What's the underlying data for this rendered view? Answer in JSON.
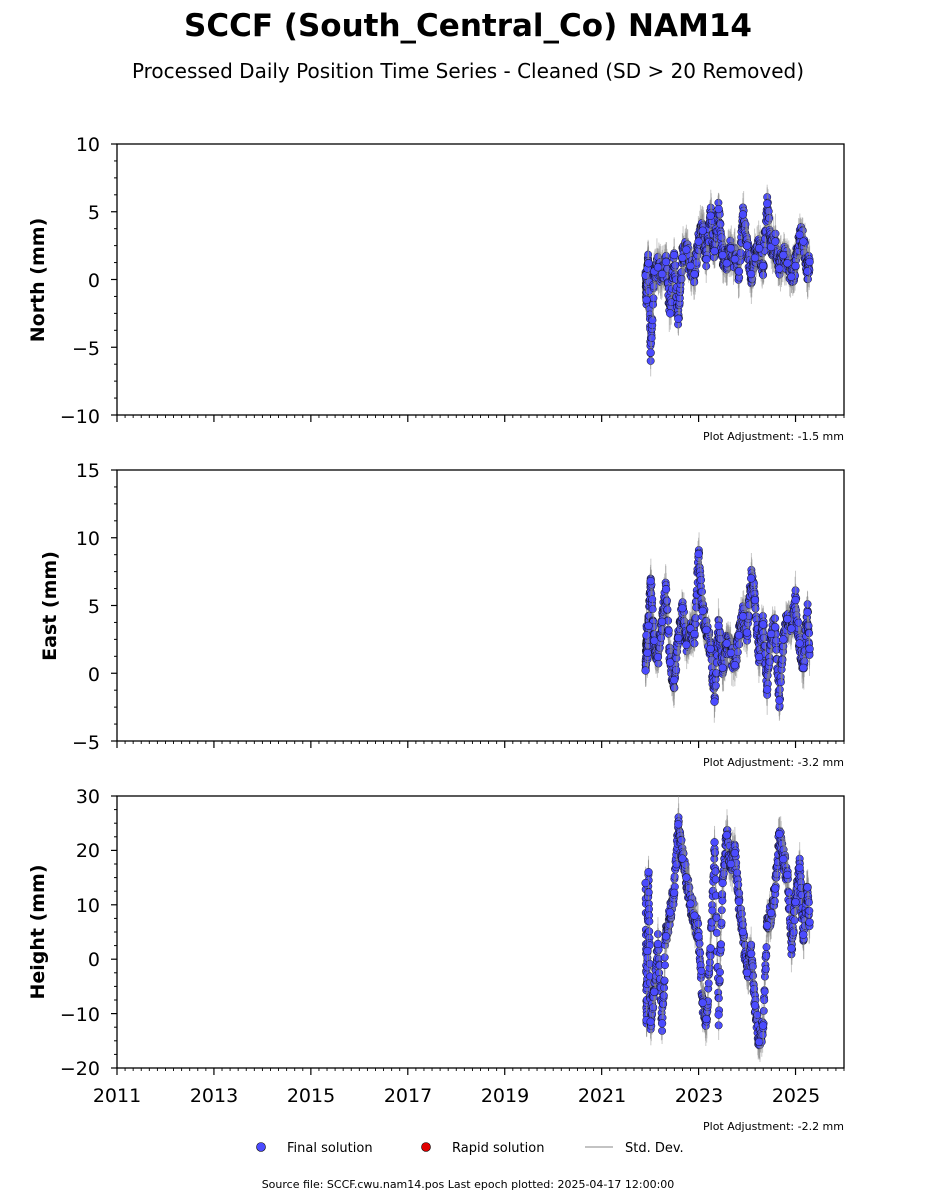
{
  "title": "SCCF (South_Central_Co) NAM14",
  "subtitle": "Processed Daily Position Time Series - Cleaned (SD > 20 Removed)",
  "footer": "Source file: SCCF.cwu.nam14.pos  Last epoch plotted: 2025-04-17 12:00:00",
  "legend": {
    "final_label": "Final solution",
    "rapid_label": "Rapid solution",
    "std_label": "Std. Dev."
  },
  "colors": {
    "final": "#4B4BFF",
    "rapid": "#E00000",
    "std": "#888888"
  },
  "chart_data": [
    {
      "type": "scatter",
      "ylabel": "North (mm)",
      "ylim": [
        -10,
        10
      ],
      "yticks": [
        "10",
        "5",
        "0",
        "−5",
        "−10"
      ],
      "xlim": [
        "2011-01-01",
        "2026-01-01"
      ],
      "xticks": [],
      "adjustment": "Plot Adjustment: -1.5 mm",
      "series": [
        {
          "name": "Final solution",
          "x": [
            "2021-11-28",
            "2021-12-05",
            "2021-12-12",
            "2021-12-20",
            "2022-01-05",
            "2022-02-01",
            "2022-03-01",
            "2022-04-01",
            "2022-05-01",
            "2022-06-01",
            "2022-07-01",
            "2022-08-01",
            "2022-09-01",
            "2022-10-01",
            "2022-11-01",
            "2022-12-01",
            "2023-01-01",
            "2023-02-01",
            "2023-03-01",
            "2023-04-01",
            "2023-05-01",
            "2023-06-01",
            "2023-07-01",
            "2023-08-01",
            "2023-09-01",
            "2023-10-01",
            "2023-11-01",
            "2023-12-01",
            "2024-01-01",
            "2024-02-01",
            "2024-03-01",
            "2024-04-01",
            "2024-05-01",
            "2024-06-01",
            "2024-07-01",
            "2024-08-01",
            "2024-09-01",
            "2024-10-01",
            "2024-11-01",
            "2024-12-01",
            "2025-01-01",
            "2025-02-01",
            "2025-03-01",
            "2025-04-01",
            "2025-04-17"
          ],
          "y": [
            0.3,
            -1.5,
            0.8,
            1.2,
            -5.4,
            0.6,
            0.9,
            0.4,
            1.3,
            -2.5,
            1.8,
            -2.9,
            1.6,
            2.2,
            1.0,
            0.4,
            2.8,
            3.6,
            1.5,
            4.7,
            2.1,
            5.2,
            1.8,
            1.2,
            2.3,
            1.5,
            0.6,
            4.8,
            2.5,
            0.4,
            1.6,
            2.3,
            1.0,
            5.6,
            2.4,
            2.8,
            0.8,
            1.8,
            1.2,
            0.2,
            1.0,
            3.3,
            2.8,
            0.6,
            1.3
          ]
        }
      ]
    },
    {
      "type": "scatter",
      "ylabel": "East (mm)",
      "ylim": [
        -5,
        15
      ],
      "yticks": [
        "15",
        "10",
        "5",
        "0",
        "−5"
      ],
      "xlim": [
        "2011-01-01",
        "2026-01-01"
      ],
      "xticks": [],
      "adjustment": "Plot Adjustment: -3.2 mm",
      "series": [
        {
          "name": "Final solution",
          "x": [
            "2021-11-28",
            "2021-12-05",
            "2021-12-12",
            "2021-12-20",
            "2022-01-05",
            "2022-02-01",
            "2022-03-01",
            "2022-04-01",
            "2022-05-01",
            "2022-06-01",
            "2022-07-01",
            "2022-08-01",
            "2022-09-01",
            "2022-10-01",
            "2022-11-01",
            "2022-12-01",
            "2023-01-01",
            "2023-02-01",
            "2023-03-01",
            "2023-04-01",
            "2023-05-01",
            "2023-06-01",
            "2023-07-01",
            "2023-08-01",
            "2023-09-01",
            "2023-10-01",
            "2023-11-01",
            "2023-12-01",
            "2024-01-01",
            "2024-02-01",
            "2024-03-01",
            "2024-04-01",
            "2024-05-01",
            "2024-06-01",
            "2024-07-01",
            "2024-08-01",
            "2024-09-01",
            "2024-10-01",
            "2024-11-01",
            "2024-12-01",
            "2025-01-01",
            "2025-02-01",
            "2025-03-01",
            "2025-04-01",
            "2025-04-17"
          ],
          "y": [
            0.2,
            2.8,
            1.5,
            3.5,
            6.8,
            2.4,
            1.2,
            3.8,
            6.2,
            0.8,
            -0.5,
            2.6,
            4.8,
            2.1,
            3.3,
            2.9,
            8.8,
            4.6,
            3.2,
            1.8,
            -2.1,
            3.5,
            0.4,
            2.2,
            1.5,
            0.6,
            2.8,
            4.2,
            3.0,
            7.0,
            5.4,
            1.2,
            3.6,
            -1.2,
            2.9,
            3.4,
            -2.0,
            2.5,
            4.0,
            3.3,
            5.4,
            2.2,
            0.4,
            4.5,
            1.8
          ]
        }
      ]
    },
    {
      "type": "scatter",
      "ylabel": "Height (mm)",
      "ylim": [
        -20,
        30
      ],
      "yticks": [
        "30",
        "20",
        "10",
        "0",
        "−10",
        "−20"
      ],
      "xlim": [
        "2011-01-01",
        "2026-01-01"
      ],
      "xticks": [
        "2011",
        "2013",
        "2015",
        "2017",
        "2019",
        "2021",
        "2023",
        "2025"
      ],
      "adjustment": "Plot Adjustment: -2.2 mm",
      "series": [
        {
          "name": "Final solution",
          "x": [
            "2021-11-28",
            "2021-12-05",
            "2021-12-12",
            "2021-12-20",
            "2022-01-05",
            "2022-02-01",
            "2022-03-01",
            "2022-04-01",
            "2022-05-01",
            "2022-06-01",
            "2022-07-01",
            "2022-08-01",
            "2022-09-01",
            "2022-10-01",
            "2022-11-01",
            "2022-12-01",
            "2023-01-01",
            "2023-02-01",
            "2023-03-01",
            "2023-04-01",
            "2023-05-01",
            "2023-06-01",
            "2023-07-01",
            "2023-08-01",
            "2023-09-01",
            "2023-10-01",
            "2023-11-01",
            "2023-12-01",
            "2024-01-01",
            "2024-02-01",
            "2024-03-01",
            "2024-04-01",
            "2024-05-01",
            "2024-06-01",
            "2024-07-01",
            "2024-08-01",
            "2024-09-01",
            "2024-10-01",
            "2024-11-01",
            "2024-12-01",
            "2025-01-01",
            "2025-02-01",
            "2025-03-01",
            "2025-04-01",
            "2025-04-17"
          ],
          "y": [
            14.0,
            -11.2,
            1.5,
            16.0,
            -11.5,
            -6.0,
            2.8,
            -11.8,
            4.2,
            8.6,
            12.2,
            24.8,
            18.5,
            15.0,
            10.2,
            8.0,
            4.2,
            -8.0,
            -11.0,
            2.0,
            21.5,
            -10.2,
            14.0,
            22.8,
            17.5,
            19.5,
            10.6,
            5.0,
            -2.5,
            1.0,
            -8.5,
            -15.2,
            -12.2,
            6.2,
            8.5,
            13.0,
            23.0,
            18.4,
            15.5,
            2.0,
            10.5,
            16.8,
            4.5,
            13.2,
            6.8
          ]
        }
      ]
    }
  ]
}
